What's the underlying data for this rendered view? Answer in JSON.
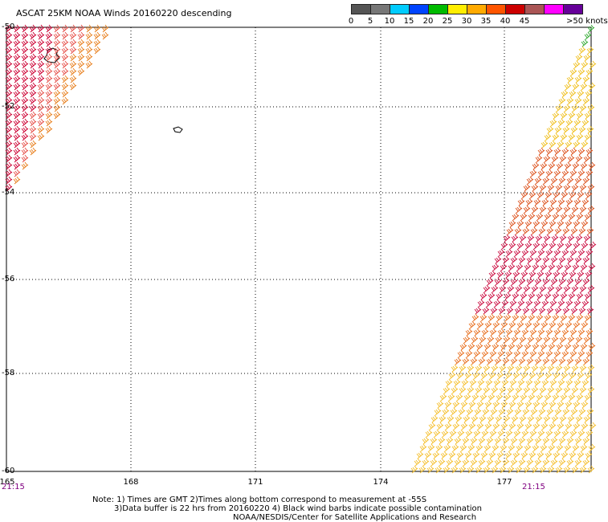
{
  "title": "ASCAT 25KM NOAA Winds 20160220 descending",
  "scale": {
    "labels": [
      "0",
      "5",
      "10",
      "15",
      "20",
      "25",
      "30",
      "35",
      "40",
      "45",
      ">50 knots"
    ],
    "colors": [
      "#555555",
      "#777777",
      "#00ccff",
      "#0044ff",
      "#00bb00",
      "#ffee00",
      "#ffaa00",
      "#ff5500",
      "#cc0000",
      "#aa5555",
      "#ff00ff",
      "#660099"
    ]
  },
  "axes": {
    "lat_labels": [
      "-50",
      "-52",
      "-54",
      "-56",
      "-58",
      "-60"
    ],
    "lon_labels": [
      "165",
      "168",
      "171",
      "174",
      "177"
    ]
  },
  "times": {
    "left": "21:15",
    "right": "21:15"
  },
  "notes": {
    "line1": "Note: 1) Times are GMT 2)Times along bottom correspond to measurement at -55S",
    "line2": "3)Data buffer is 22 hrs from 20160220 4) Black wind barbs indicate possible contamination",
    "line3": "NOAA/NESDIS/Center for Satellite Applications and Research"
  }
}
